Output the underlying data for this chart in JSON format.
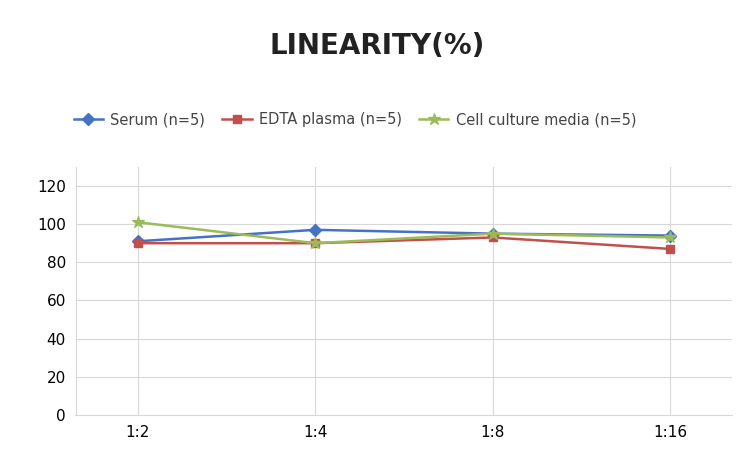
{
  "title": "LINEARITY(%)",
  "title_fontsize": 20,
  "title_fontweight": "bold",
  "x_labels": [
    "1:2",
    "1:4",
    "1:8",
    "1:16"
  ],
  "x_positions": [
    0,
    1,
    2,
    3
  ],
  "series": [
    {
      "label": "Serum (n=5)",
      "values": [
        91,
        97,
        95,
        94
      ],
      "color": "#4472C4",
      "marker": "D",
      "markersize": 6,
      "linewidth": 1.8
    },
    {
      "label": "EDTA plasma (n=5)",
      "values": [
        90,
        90,
        93,
        87
      ],
      "color": "#C0504D",
      "marker": "s",
      "markersize": 6,
      "linewidth": 1.8
    },
    {
      "label": "Cell culture media (n=5)",
      "values": [
        101,
        90,
        95,
        93
      ],
      "color": "#9BBB59",
      "marker": "*",
      "markersize": 9,
      "linewidth": 1.8
    }
  ],
  "ylim": [
    0,
    130
  ],
  "yticks": [
    0,
    20,
    40,
    60,
    80,
    100,
    120
  ],
  "grid_color": "#D8D8D8",
  "background_color": "#FFFFFF",
  "legend_fontsize": 10.5,
  "axis_fontsize": 11
}
